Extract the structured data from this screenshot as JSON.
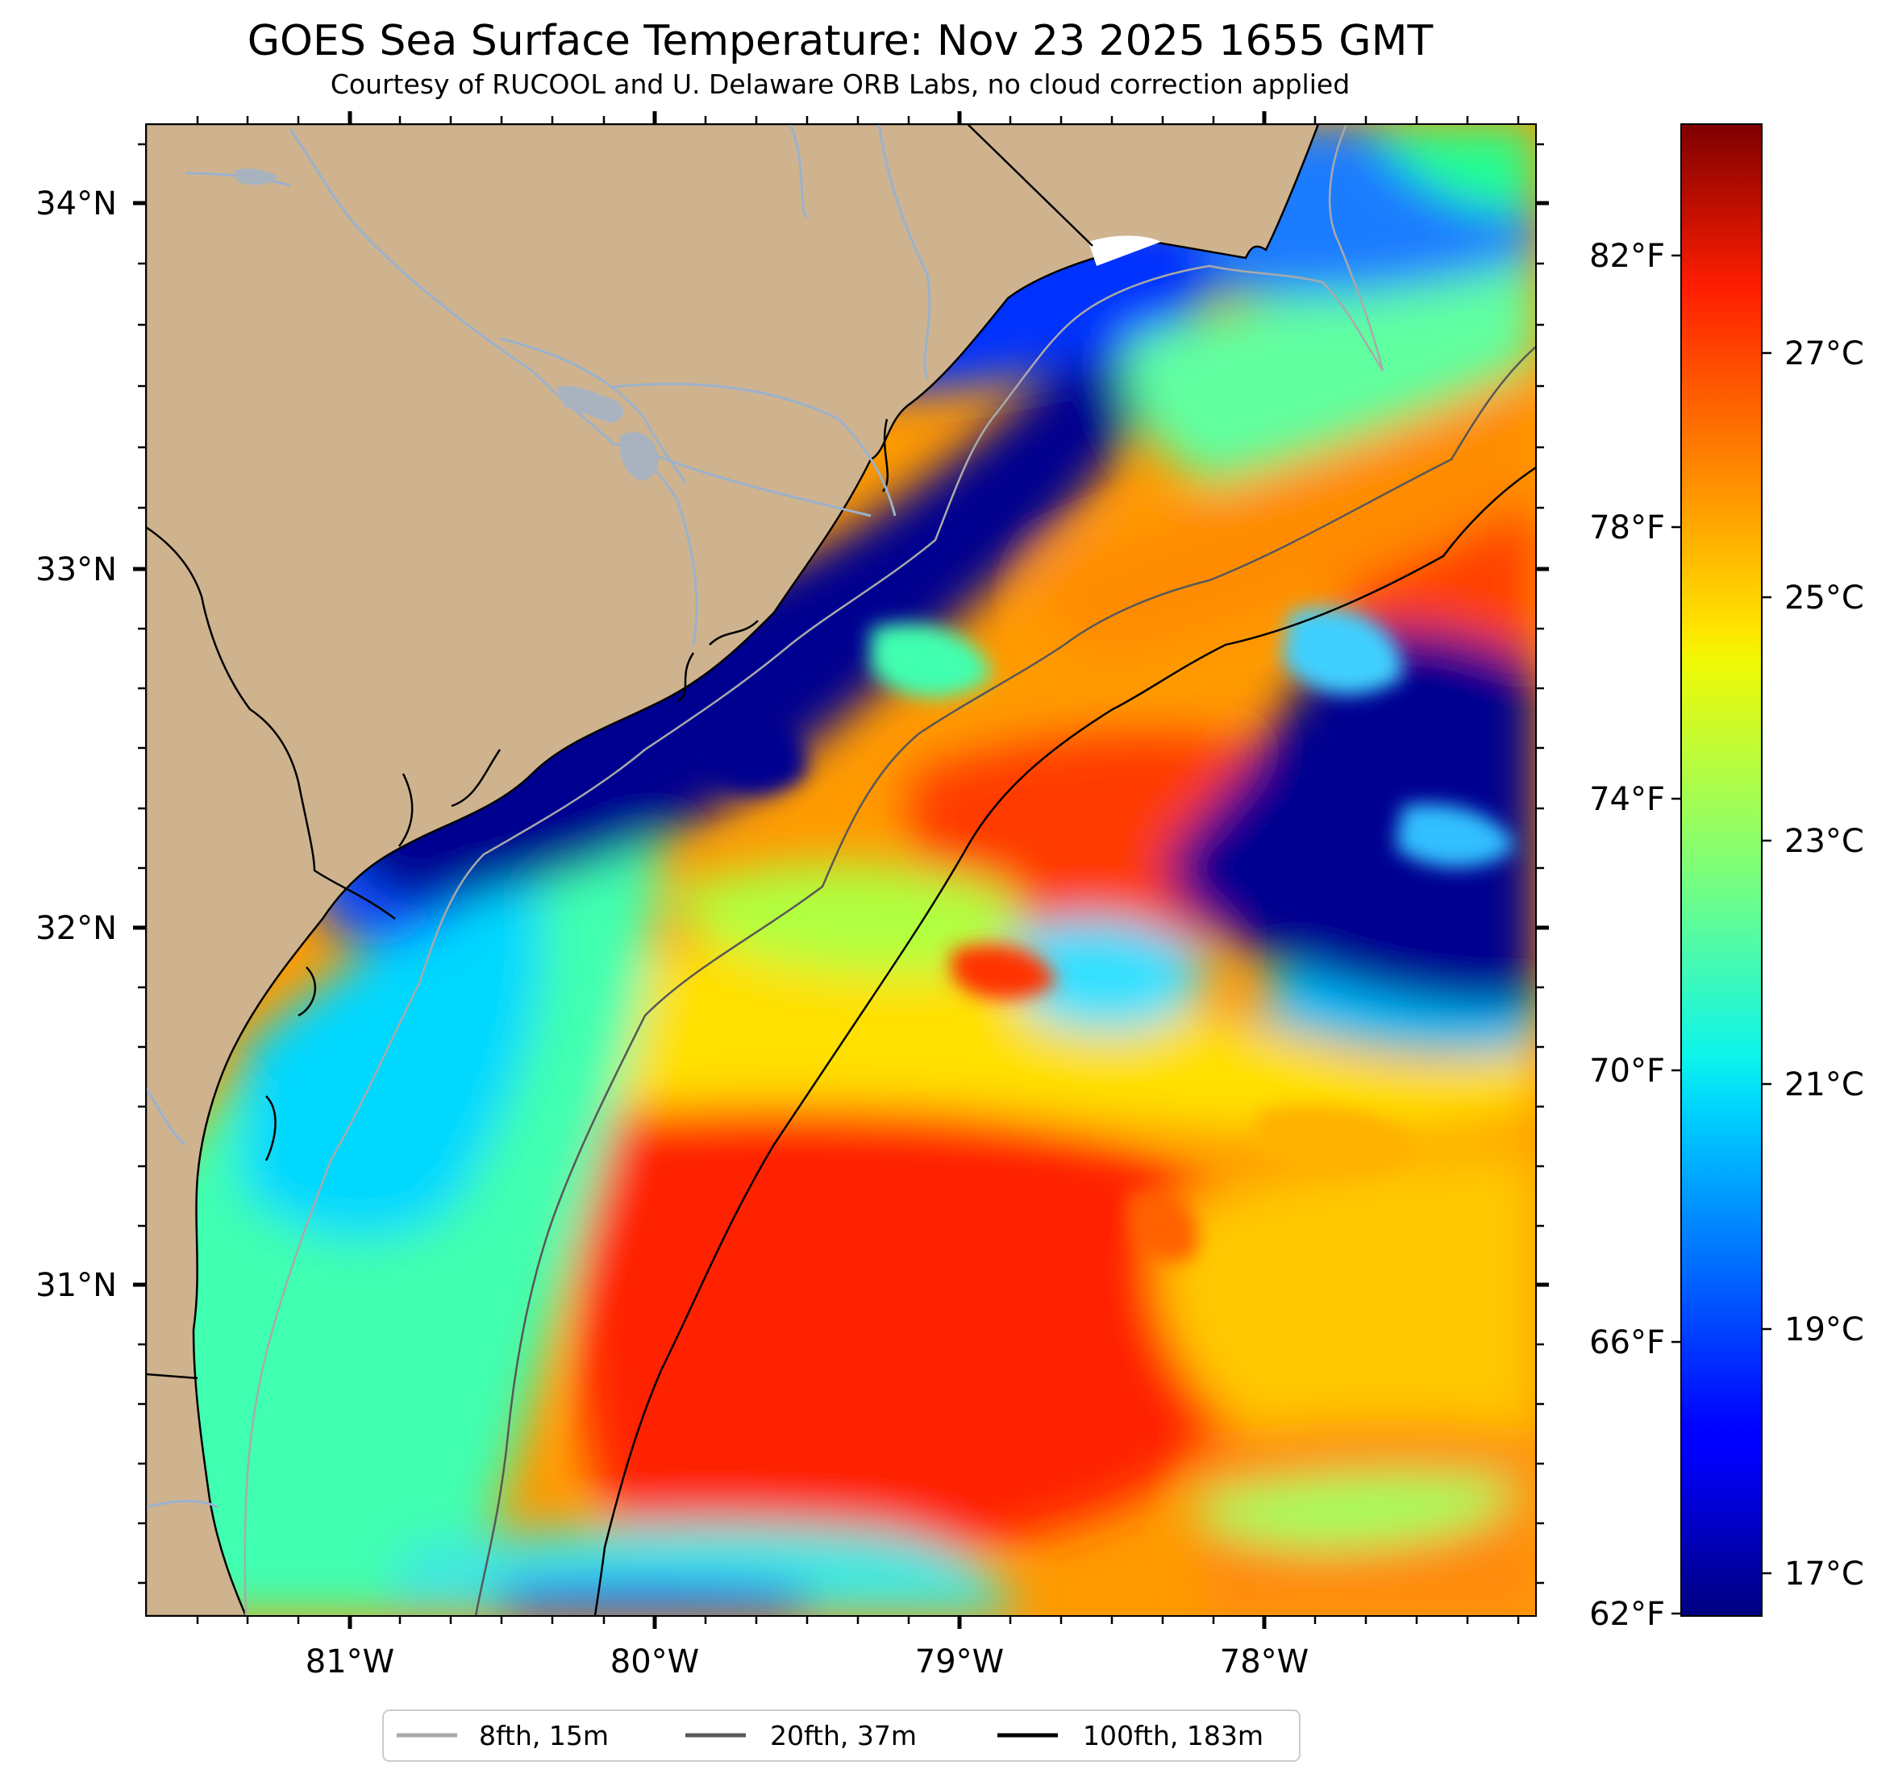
{
  "title": "GOES Sea Surface Temperature: Nov 23 2025 1655 GMT",
  "subtitle": "Courtesy of RUCOOL and U. Delaware ORB Labs, no cloud correction applied",
  "map": {
    "lon_ticks": [
      {
        "label": "81°W",
        "value": -81
      },
      {
        "label": "80°W",
        "value": -80
      },
      {
        "label": "79°W",
        "value": -79
      },
      {
        "label": "78°W",
        "value": -78
      }
    ],
    "lat_ticks": [
      {
        "label": "34°N",
        "value": 34
      },
      {
        "label": "33°N",
        "value": 33
      },
      {
        "label": "32°N",
        "value": 32
      },
      {
        "label": "31°N",
        "value": 31
      }
    ],
    "extent": {
      "lon_min": -81.67,
      "lon_max": -77.12,
      "lat_min": 30.1,
      "lat_max": 34.22
    },
    "colors": {
      "land": "#cfb38f",
      "coast": "#000000",
      "river": "#9ab2cc",
      "nodata": "#ffffff"
    }
  },
  "colorbar": {
    "colormap": "jet",
    "fahrenheit_ticks": [
      "82°F",
      "78°F",
      "74°F",
      "70°F",
      "66°F",
      "62°F"
    ],
    "celsius_ticks": [
      "27°C",
      "25°C",
      "23°C",
      "21°C",
      "19°C",
      "17°C"
    ]
  },
  "legend": [
    {
      "label": "8fth, 15m",
      "color": "#a9a9a9"
    },
    {
      "label": "20fth, 37m",
      "color": "#585858"
    },
    {
      "label": "100fth, 183m",
      "color": "#000000"
    }
  ]
}
